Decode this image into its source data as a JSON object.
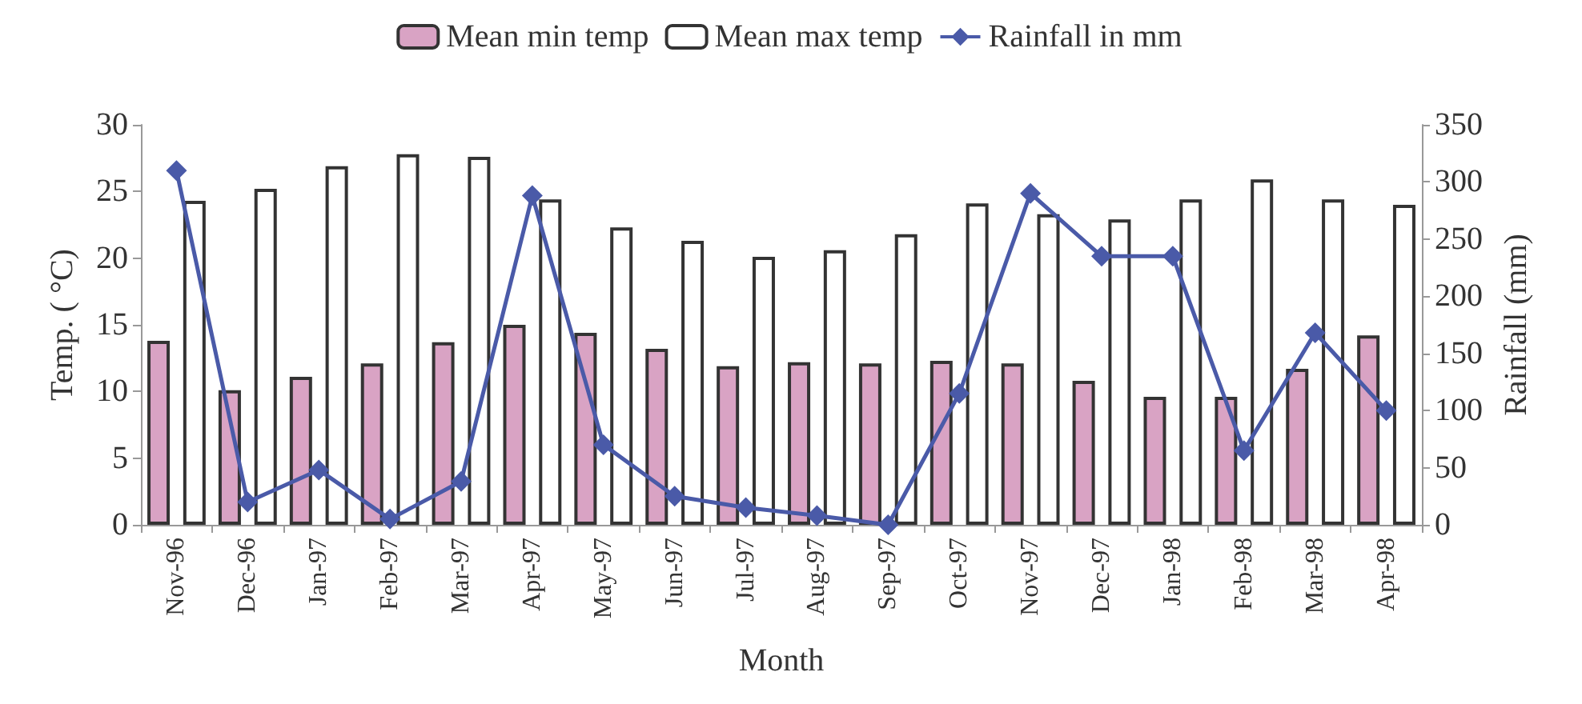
{
  "chart_data": {
    "type": "bar",
    "xlabel": "Month",
    "ylabel": "Temp. ( °C)",
    "y2label": "Rainfall (mm)",
    "categories": [
      "Nov-96",
      "Dec-96",
      "Jan-97",
      "Feb-97",
      "Mar-97",
      "Apr-97",
      "May-97",
      "Jun-97",
      "Jul-97",
      "Aug-97",
      "Sep-97",
      "Oct-97",
      "Nov-97",
      "Dec-97",
      "Jan-98",
      "Feb-98",
      "Mar-98",
      "Apr-98"
    ],
    "series": [
      {
        "name": "Mean min temp",
        "color": "#d9a3c4",
        "values": [
          13.8,
          10.1,
          11.1,
          12.1,
          13.7,
          15,
          14.4,
          13.2,
          11.9,
          12.2,
          12.1,
          12.3,
          12.1,
          10.8,
          9.6,
          9.6,
          11.7,
          14.2
        ]
      },
      {
        "name": "Mean max temp",
        "color": "#ffffff",
        "values": [
          24.3,
          25.2,
          26.9,
          27.8,
          27.6,
          24.4,
          22.3,
          21.3,
          20.1,
          20.6,
          21.8,
          24.1,
          23.3,
          22.9,
          24.4,
          25.9,
          24.4,
          24
        ]
      },
      {
        "name": "Rainfall in mm",
        "type": "line",
        "axis": "y2",
        "color": "#4a5aa8",
        "marker": "diamond",
        "values": [
          310,
          20,
          48,
          5,
          38,
          288,
          70,
          25,
          15,
          8,
          0,
          115,
          290,
          235,
          235,
          65,
          168,
          100
        ]
      }
    ],
    "ylim": [
      0,
      30
    ],
    "yticks": [
      0,
      5,
      10,
      15,
      20,
      25,
      30
    ],
    "y2lim": [
      0,
      350
    ],
    "y2ticks": [
      0,
      50,
      100,
      150,
      200,
      250,
      300,
      350
    ],
    "grid": false,
    "legend": "top"
  }
}
